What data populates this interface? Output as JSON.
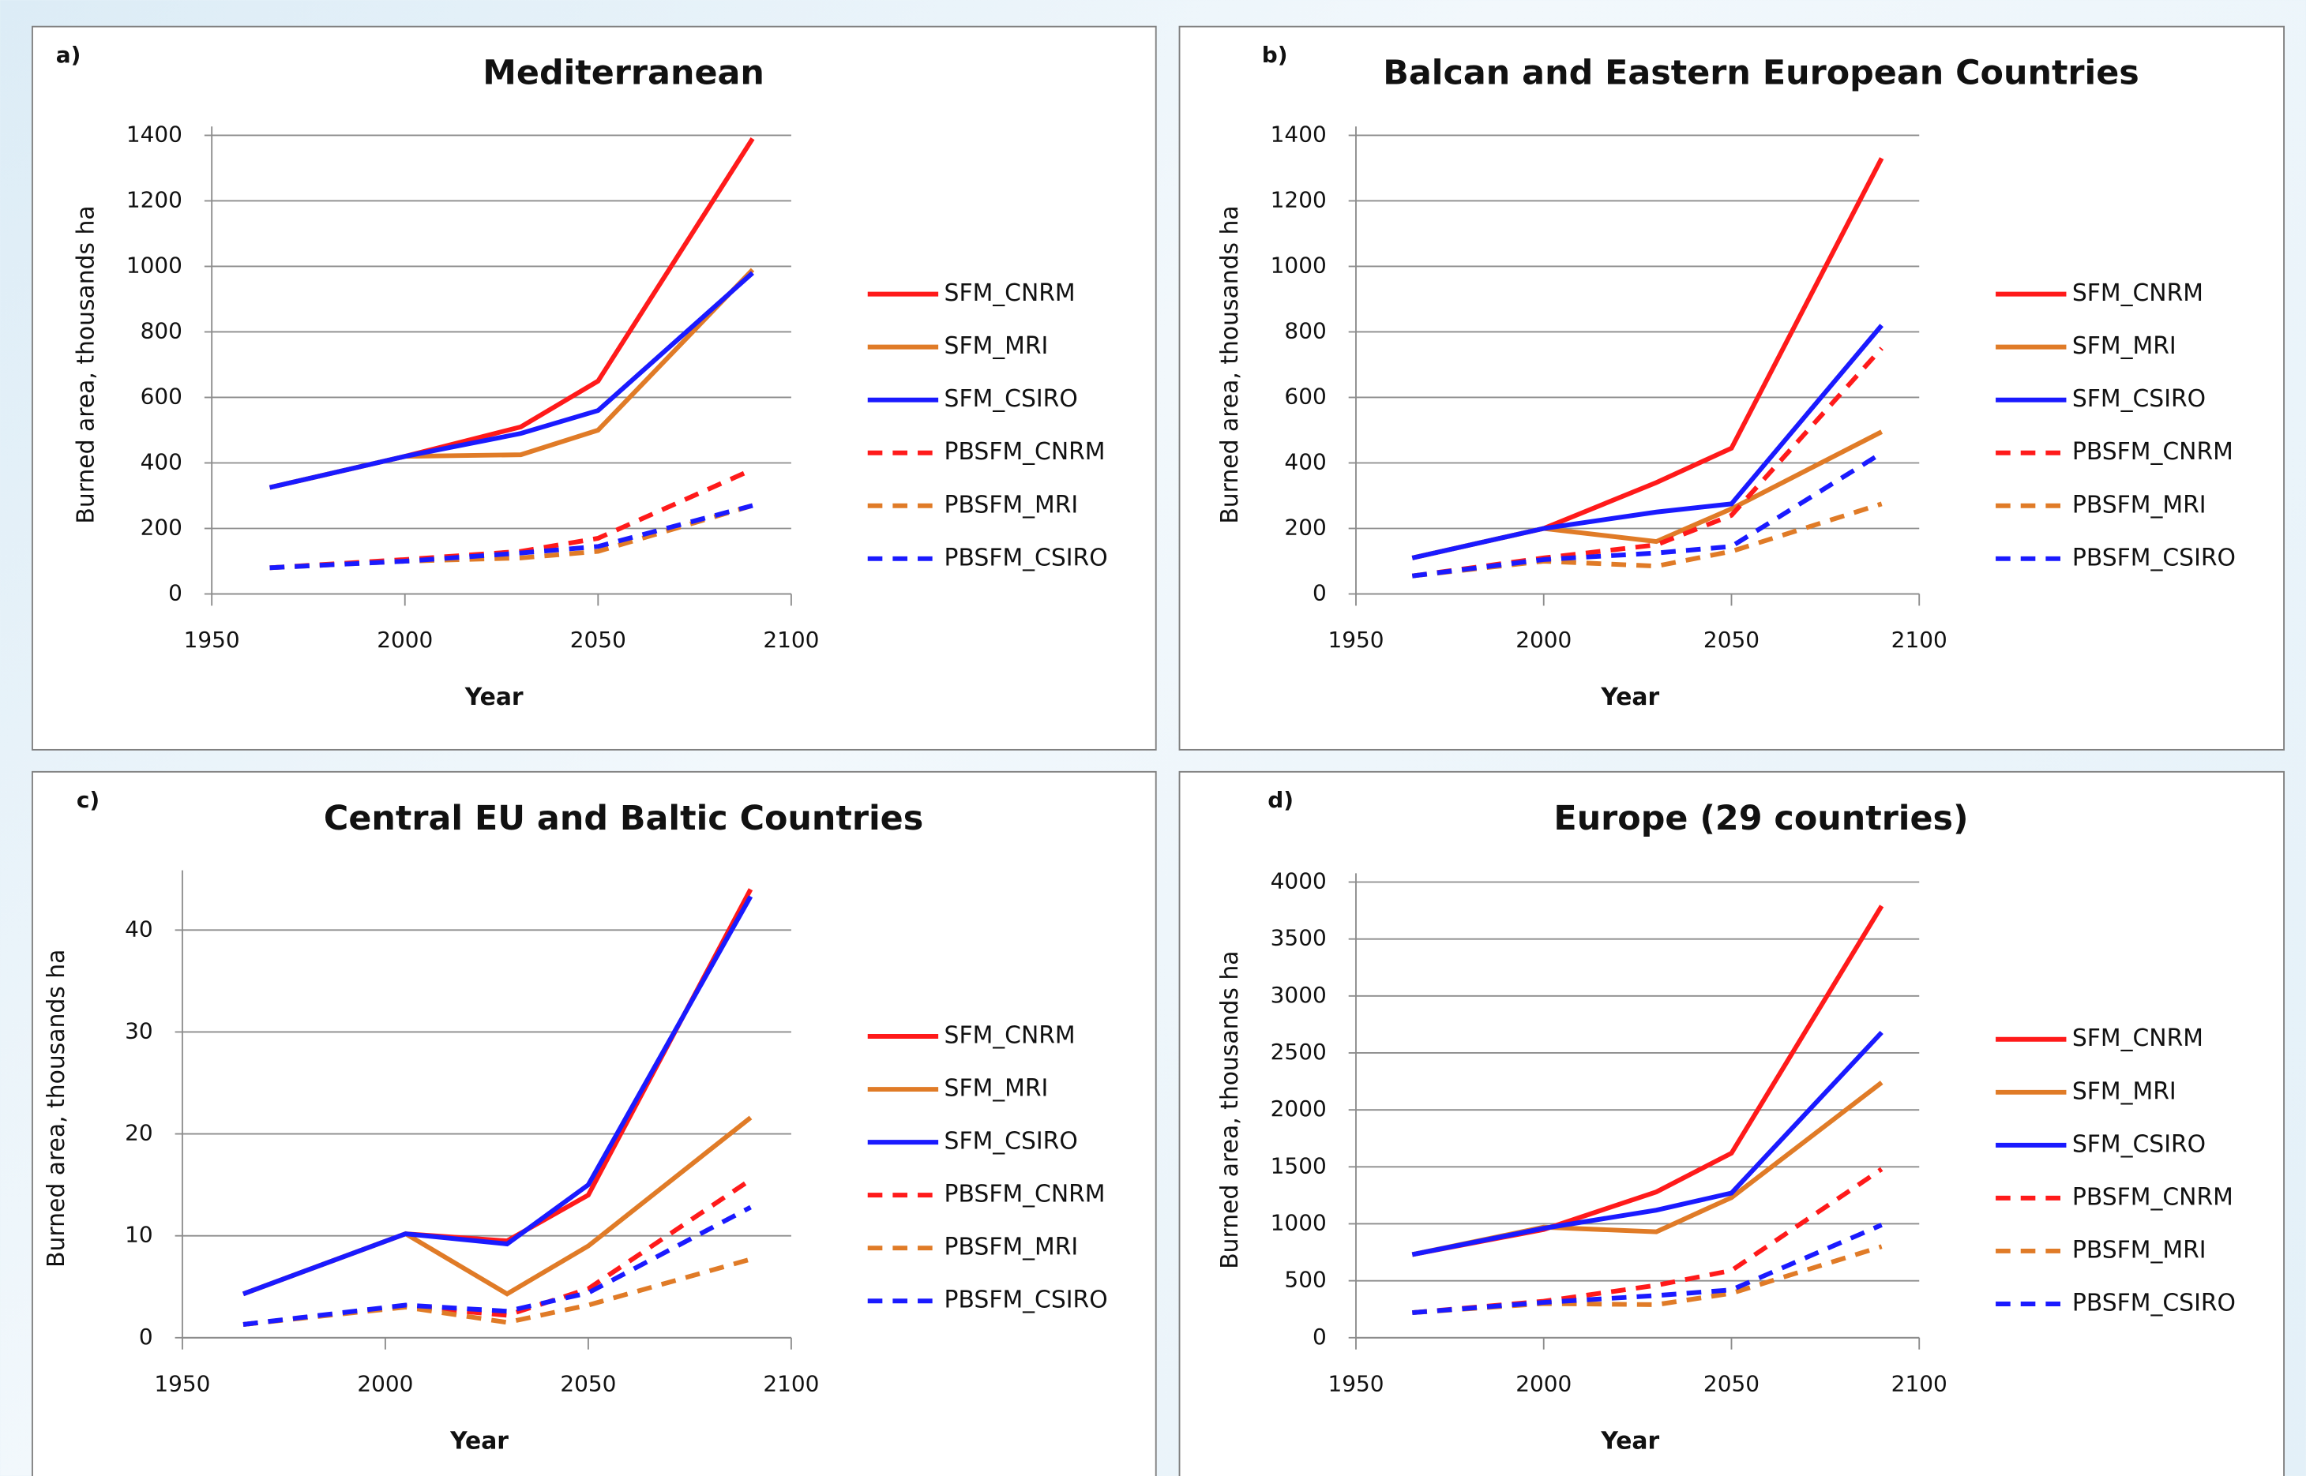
{
  "chart_data": [
    {
      "type": "line",
      "panel_label": "a)",
      "title": "Mediterranean",
      "x_label": "Year",
      "y_label": "Burned area, thousands ha",
      "x": [
        1965,
        2000,
        2030,
        2050,
        2090
      ],
      "xlim": [
        1950,
        2100
      ],
      "xticks": [
        1950,
        2000,
        2050,
        2100
      ],
      "ylim": [
        0,
        1400
      ],
      "yticks": [
        0,
        200,
        400,
        600,
        800,
        1000,
        1200,
        1400
      ],
      "grid": true,
      "series": [
        {
          "name": "SFM_CNRM",
          "color": "#ff1a1a",
          "dashed": false,
          "values": [
            325,
            420,
            510,
            650,
            1390
          ]
        },
        {
          "name": "SFM_MRI",
          "color": "#e07b27",
          "dashed": false,
          "values": [
            325,
            420,
            425,
            500,
            990
          ]
        },
        {
          "name": "SFM_CSIRO",
          "color": "#1a1aff",
          "dashed": false,
          "values": [
            325,
            420,
            490,
            560,
            980
          ]
        },
        {
          "name": "PBSFM_CNRM",
          "color": "#ff1a1a",
          "dashed": true,
          "values": [
            80,
            105,
            130,
            170,
            380
          ]
        },
        {
          "name": "PBSFM_MRI",
          "color": "#e07b27",
          "dashed": true,
          "values": [
            80,
            100,
            110,
            130,
            270
          ]
        },
        {
          "name": "PBSFM_CSIRO",
          "color": "#1a1aff",
          "dashed": true,
          "values": [
            80,
            100,
            125,
            145,
            270
          ]
        }
      ]
    },
    {
      "type": "line",
      "panel_label": "b)",
      "title": "Balcan and Eastern European Countries",
      "x_label": "Year",
      "y_label": "Burned area, thousands ha",
      "x": [
        1965,
        2000,
        2030,
        2050,
        2090
      ],
      "xlim": [
        1950,
        2100
      ],
      "xticks": [
        1950,
        2000,
        2050,
        2100
      ],
      "ylim": [
        0,
        1400
      ],
      "yticks": [
        0,
        200,
        400,
        600,
        800,
        1000,
        1200,
        1400
      ],
      "grid": true,
      "series": [
        {
          "name": "SFM_CNRM",
          "color": "#ff1a1a",
          "dashed": false,
          "values": [
            110,
            200,
            340,
            445,
            1330
          ]
        },
        {
          "name": "SFM_MRI",
          "color": "#e07b27",
          "dashed": false,
          "values": [
            110,
            200,
            160,
            260,
            495
          ]
        },
        {
          "name": "SFM_CSIRO",
          "color": "#1a1aff",
          "dashed": false,
          "values": [
            110,
            200,
            250,
            275,
            820
          ]
        },
        {
          "name": "PBSFM_CNRM",
          "color": "#ff1a1a",
          "dashed": true,
          "values": [
            55,
            110,
            150,
            240,
            750
          ]
        },
        {
          "name": "PBSFM_MRI",
          "color": "#e07b27",
          "dashed": true,
          "values": [
            55,
            100,
            85,
            130,
            275
          ]
        },
        {
          "name": "PBSFM_CSIRO",
          "color": "#1a1aff",
          "dashed": true,
          "values": [
            55,
            105,
            125,
            145,
            430
          ]
        }
      ]
    },
    {
      "type": "line",
      "panel_label": "c)",
      "title": "Central EU and Baltic Countries",
      "x_label": "Year",
      "y_label": "Burned area, thousands ha",
      "x": [
        1965,
        2005,
        2030,
        2050,
        2090
      ],
      "xlim": [
        1950,
        2100
      ],
      "xticks": [
        1950,
        2000,
        2050,
        2100
      ],
      "ylim": [
        0,
        45
      ],
      "yticks": [
        0,
        10,
        20,
        30,
        40
      ],
      "grid": true,
      "series": [
        {
          "name": "SFM_CNRM",
          "color": "#ff1a1a",
          "dashed": false,
          "values": [
            4.3,
            10.2,
            9.5,
            14,
            44
          ]
        },
        {
          "name": "SFM_MRI",
          "color": "#e07b27",
          "dashed": false,
          "values": [
            4.3,
            10.2,
            4.3,
            9,
            21.6
          ]
        },
        {
          "name": "SFM_CSIRO",
          "color": "#1a1aff",
          "dashed": false,
          "values": [
            4.3,
            10.2,
            9.2,
            15,
            43.3
          ]
        },
        {
          "name": "PBSFM_CNRM",
          "color": "#ff1a1a",
          "dashed": true,
          "values": [
            1.3,
            3.1,
            2.2,
            4.8,
            15.5
          ]
        },
        {
          "name": "PBSFM_MRI",
          "color": "#e07b27",
          "dashed": true,
          "values": [
            1.3,
            3,
            1.5,
            3.2,
            7.7
          ]
        },
        {
          "name": "PBSFM_CSIRO",
          "color": "#1a1aff",
          "dashed": true,
          "values": [
            1.3,
            3.2,
            2.6,
            4.4,
            12.8
          ]
        }
      ]
    },
    {
      "type": "line",
      "panel_label": "d)",
      "title": "Europe (29 countries)",
      "x_label": "Year",
      "y_label": "Burned area, thousands ha",
      "x": [
        1965,
        2000,
        2030,
        2050,
        2090
      ],
      "xlim": [
        1950,
        2100
      ],
      "xticks": [
        1950,
        2000,
        2050,
        2100
      ],
      "ylim": [
        0,
        4000
      ],
      "yticks": [
        0,
        500,
        1000,
        1500,
        2000,
        2500,
        3000,
        3500,
        4000
      ],
      "grid": true,
      "series": [
        {
          "name": "SFM_CNRM",
          "color": "#ff1a1a",
          "dashed": false,
          "values": [
            730,
            950,
            1280,
            1620,
            3790
          ]
        },
        {
          "name": "SFM_MRI",
          "color": "#e07b27",
          "dashed": false,
          "values": [
            730,
            970,
            930,
            1230,
            2240
          ]
        },
        {
          "name": "SFM_CSIRO",
          "color": "#1a1aff",
          "dashed": false,
          "values": [
            730,
            960,
            1120,
            1270,
            2680
          ]
        },
        {
          "name": "PBSFM_CNRM",
          "color": "#ff1a1a",
          "dashed": true,
          "values": [
            220,
            320,
            460,
            590,
            1480
          ]
        },
        {
          "name": "PBSFM_MRI",
          "color": "#e07b27",
          "dashed": true,
          "values": [
            220,
            300,
            290,
            390,
            800
          ]
        },
        {
          "name": "PBSFM_CSIRO",
          "color": "#1a1aff",
          "dashed": true,
          "values": [
            220,
            310,
            370,
            420,
            990
          ]
        }
      ]
    }
  ]
}
